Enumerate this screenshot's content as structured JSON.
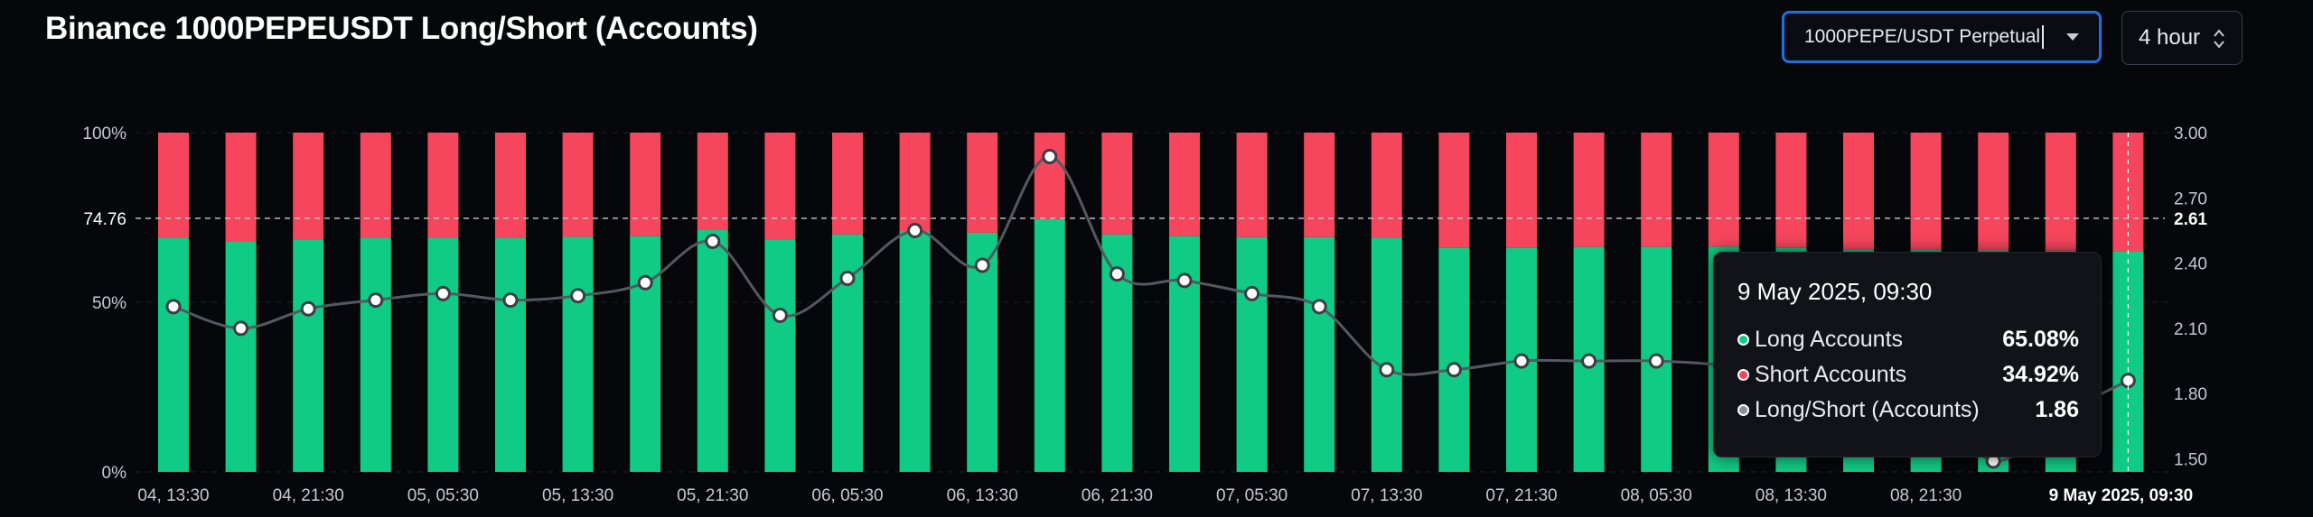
{
  "header": {
    "title": "Binance 1000PEPEUSDT Long/Short (Accounts)",
    "symbol_select": "1000PEPE/USDT Perpetual",
    "interval_select": "4 hour"
  },
  "colors": {
    "long": "#10cb85",
    "short": "#f6465d",
    "ratio_line": "#55595f",
    "select_border": "#1f6fe0"
  },
  "chart_data": {
    "type": "bar",
    "title": "Binance 1000PEPEUSDT Long/Short (Accounts)",
    "x_tick_labels": [
      "04, 13:30",
      "04, 21:30",
      "05, 05:30",
      "05, 13:30",
      "05, 21:30",
      "06, 05:30",
      "06, 13:30",
      "06, 21:30",
      "07, 05:30",
      "07, 13:30",
      "07, 21:30",
      "08, 05:30",
      "08, 13:30",
      "08, 21:30",
      "09"
    ],
    "highlight_x_label": "9 May 2025, 09:30",
    "left_axis": {
      "ticks": [
        "100%",
        "74.76",
        "50%",
        "0%"
      ],
      "ylim": [
        0,
        100
      ]
    },
    "right_axis": {
      "ticks": [
        "3.00",
        "2.70",
        "2.40",
        "2.10",
        "1.80",
        "1.50"
      ],
      "ylim": [
        1.44,
        3.0
      ],
      "highlight_value": "2.61"
    },
    "reference_line": 74.76,
    "series": [
      {
        "name": "Long Accounts",
        "axis": "left",
        "values": [
          69.0,
          68.0,
          68.5,
          69.0,
          69.0,
          69.0,
          69.3,
          69.5,
          71.5,
          68.5,
          70.0,
          71.0,
          70.5,
          74.5,
          70.0,
          69.5,
          69.2,
          69.2,
          69.0,
          66.0,
          66.0,
          66.3,
          66.3,
          66.4,
          66.0,
          65.5,
          65.4,
          65.3,
          65.2,
          65.08
        ]
      },
      {
        "name": "Short Accounts",
        "axis": "left",
        "values": [
          31.0,
          32.0,
          31.5,
          31.0,
          31.0,
          31.0,
          30.7,
          30.5,
          28.5,
          31.5,
          30.0,
          29.0,
          29.5,
          25.5,
          30.0,
          30.5,
          30.8,
          30.8,
          31.0,
          34.0,
          34.0,
          33.7,
          33.7,
          33.6,
          34.0,
          34.5,
          34.6,
          34.7,
          34.8,
          34.92
        ]
      },
      {
        "name": "Long/Short (Accounts)",
        "axis": "right",
        "values": [
          2.2,
          2.1,
          2.19,
          2.23,
          2.26,
          2.23,
          2.25,
          2.31,
          2.5,
          2.16,
          2.33,
          2.55,
          2.39,
          2.89,
          2.35,
          2.32,
          2.26,
          2.2,
          1.91,
          1.91,
          1.95,
          1.95,
          1.95,
          1.93,
          1.88,
          1.85,
          1.8,
          1.49,
          1.7,
          1.86
        ]
      }
    ]
  },
  "tooltip": {
    "date": "9 May 2025, 09:30",
    "rows": [
      {
        "label": "Long Accounts",
        "value": "65.08%",
        "color": "#10cb85"
      },
      {
        "label": "Short Accounts",
        "value": "34.92%",
        "color": "#f6465d"
      },
      {
        "label": "Long/Short (Accounts)",
        "value": "1.86",
        "color": "#8c8f96"
      }
    ]
  }
}
